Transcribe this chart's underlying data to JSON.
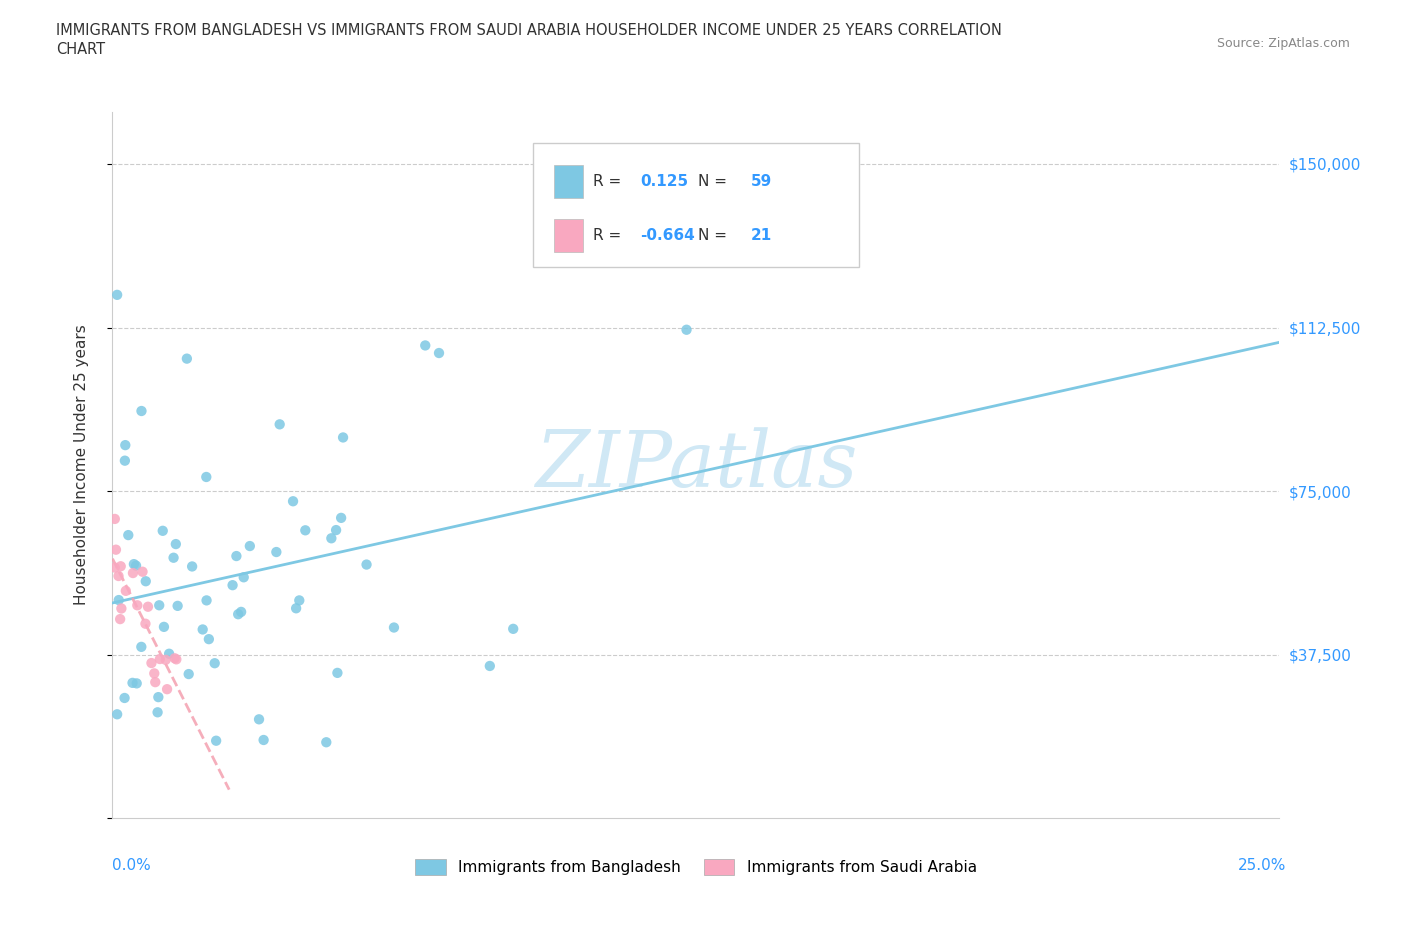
{
  "title_line1": "IMMIGRANTS FROM BANGLADESH VS IMMIGRANTS FROM SAUDI ARABIA HOUSEHOLDER INCOME UNDER 25 YEARS CORRELATION",
  "title_line2": "CHART",
  "source": "Source: ZipAtlas.com",
  "ylabel": "Householder Income Under 25 years",
  "color_bangladesh": "#7ec8e3",
  "color_saudi": "#f9a8c0",
  "trendline_color_bangladesh": "#7ec8e3",
  "trendline_color_saudi": "#f4a0b0",
  "r_bangladesh": "0.125",
  "n_bangladesh": "59",
  "r_saudi": "-0.664",
  "n_saudi": "21",
  "xmin": 0.0,
  "xmax": 0.25,
  "ymin": 0,
  "ymax": 162000,
  "yticks": [
    0,
    37500,
    75000,
    112500,
    150000
  ],
  "ytick_labels_right": [
    "",
    "$37,500",
    "$75,000",
    "$112,500",
    "$150,000"
  ],
  "legend_label_bd": "Immigrants from Bangladesh",
  "legend_label_sa": "Immigrants from Saudi Arabia",
  "watermark": "ZIPatlas",
  "watermark_color": "#d0e8f5",
  "grid_color": "#cccccc",
  "axis_color": "#cccccc",
  "text_color": "#333333",
  "blue_color": "#3399ff",
  "source_color": "#888888"
}
